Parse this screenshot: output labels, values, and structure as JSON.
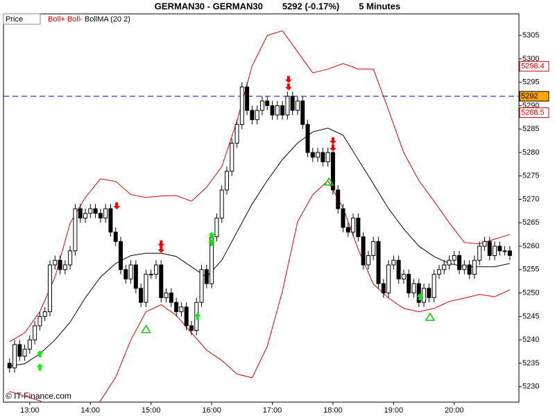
{
  "chart_data": {
    "type": "candlestick",
    "title": "GERMAN30 - GERMAN30",
    "subtitle": "5292 (-0.17%)",
    "interval": "5 Minutes",
    "credit": "© IT-Finance.com",
    "xlim": [
      754,
      1264
    ],
    "ylim": [
      5226.7,
      5309.6
    ],
    "xticks": [
      {
        "value": 780,
        "label": "13:00"
      },
      {
        "value": 840,
        "label": "14:00"
      },
      {
        "value": 900,
        "label": "15:00"
      },
      {
        "value": 960,
        "label": "16:00"
      },
      {
        "value": 1020,
        "label": "17:00"
      },
      {
        "value": 1080,
        "label": "18:00"
      },
      {
        "value": 1140,
        "label": "19:00"
      },
      {
        "value": 1200,
        "label": "20:00"
      }
    ],
    "yticks": [
      5230,
      5235,
      5240,
      5245,
      5250,
      5255,
      5260,
      5265,
      5270,
      5275,
      5280,
      5285,
      5290,
      5295,
      5300,
      5305
    ],
    "price": {
      "name": "Price",
      "up_color": "#ffffff",
      "down_color": "#000000",
      "x": [
        760,
        765,
        770,
        775,
        780,
        785,
        790,
        795,
        800,
        805,
        810,
        815,
        820,
        825,
        830,
        835,
        840,
        845,
        850,
        855,
        860,
        865,
        870,
        875,
        880,
        885,
        890,
        895,
        900,
        905,
        910,
        915,
        920,
        925,
        930,
        935,
        940,
        945,
        950,
        955,
        960,
        965,
        970,
        975,
        980,
        985,
        990,
        995,
        1000,
        1005,
        1010,
        1015,
        1020,
        1025,
        1030,
        1035,
        1040,
        1045,
        1050,
        1055,
        1060,
        1065,
        1070,
        1075,
        1080,
        1085,
        1090,
        1095,
        1100,
        1105,
        1110,
        1115,
        1120,
        1125,
        1130,
        1135,
        1140,
        1145,
        1150,
        1155,
        1160,
        1165,
        1170,
        1175,
        1180,
        1185,
        1190,
        1195,
        1200,
        1205,
        1210,
        1215,
        1220,
        1225,
        1230,
        1235,
        1240,
        1245,
        1250,
        1255
      ],
      "open": [
        5235,
        5234,
        5239,
        5236.5,
        5238,
        5240,
        5243,
        5245,
        5246,
        5256,
        5257,
        5255,
        5256,
        5259,
        5268,
        5266,
        5267,
        5268,
        5267,
        5266,
        5268,
        5263,
        5261,
        5255,
        5253,
        5256,
        5251,
        5248,
        5254,
        5254,
        5256,
        5249,
        5250,
        5248,
        5246,
        5247,
        5243,
        5242,
        5248,
        5255,
        5252,
        5262,
        5266,
        5272,
        5276,
        5282,
        5286,
        5294,
        5289,
        5287,
        5289,
        5291,
        5290,
        5288,
        5290,
        5288,
        5292,
        5289,
        5291,
        5286,
        5280,
        5279,
        5280,
        5278,
        5280,
        5272,
        5268,
        5264,
        5263,
        5266,
        5262,
        5256,
        5258,
        5261,
        5252,
        5250,
        5256,
        5257,
        5253,
        5254,
        5250,
        5252,
        5248,
        5251,
        5249,
        5254,
        5255,
        5256,
        5257,
        5258,
        5255,
        5256,
        5254,
        5257,
        5260,
        5261,
        5258,
        5260,
        5259,
        5259
      ],
      "high": [
        5236,
        5240,
        5240,
        5239,
        5241,
        5244,
        5246,
        5247,
        5257,
        5258,
        5258,
        5257,
        5260,
        5269,
        5269,
        5268,
        5269,
        5269,
        5268,
        5269,
        5269,
        5264,
        5262,
        5256,
        5257,
        5257,
        5252,
        5255,
        5255,
        5257,
        5257,
        5251,
        5251,
        5249,
        5248,
        5248,
        5244,
        5249,
        5256,
        5256,
        5263,
        5267,
        5273,
        5277,
        5283,
        5287,
        5295,
        5295,
        5290,
        5290,
        5292,
        5292,
        5291,
        5291,
        5291,
        5293,
        5293,
        5292,
        5292,
        5287,
        5281,
        5281,
        5281,
        5281,
        5281,
        5273,
        5269,
        5265,
        5267,
        5267,
        5263,
        5259,
        5262,
        5262,
        5253,
        5257,
        5258,
        5258,
        5255,
        5255,
        5253,
        5253,
        5252,
        5252,
        5255,
        5256,
        5257,
        5258,
        5259,
        5259,
        5257,
        5257,
        5258,
        5261,
        5262,
        5262,
        5261,
        5261,
        5260,
        5260
      ],
      "low": [
        5233,
        5233,
        5235.5,
        5235.5,
        5237,
        5239,
        5242,
        5244,
        5245,
        5255,
        5254,
        5254,
        5255,
        5258,
        5265,
        5265,
        5266,
        5266,
        5265,
        5265,
        5262,
        5260,
        5254,
        5252,
        5252,
        5250,
        5247,
        5247,
        5253,
        5253,
        5248,
        5248,
        5247,
        5245,
        5245,
        5242,
        5241,
        5241,
        5247,
        5251,
        5251,
        5261,
        5265,
        5271,
        5275,
        5281,
        5285,
        5288,
        5286,
        5286,
        5288,
        5289,
        5287,
        5287,
        5287,
        5287,
        5288,
        5288,
        5285,
        5279,
        5278,
        5278,
        5277,
        5277,
        5271,
        5267,
        5263,
        5262,
        5262,
        5261,
        5255,
        5255,
        5257,
        5251,
        5249,
        5249,
        5255,
        5252,
        5252,
        5249,
        5249,
        5247,
        5247,
        5248,
        5248,
        5253,
        5254,
        5255,
        5256,
        5254,
        5254,
        5253,
        5253,
        5256,
        5259,
        5257,
        5257,
        5258,
        5258,
        5257
      ],
      "close": [
        5234,
        5239,
        5236.5,
        5238,
        5240,
        5243,
        5245,
        5246,
        5256,
        5257,
        5255,
        5256,
        5259,
        5268,
        5266,
        5267,
        5268,
        5267,
        5266,
        5268,
        5263,
        5261,
        5255,
        5253,
        5256,
        5251,
        5248,
        5254,
        5254,
        5256,
        5249,
        5250,
        5248,
        5246,
        5247,
        5243,
        5242,
        5248,
        5255,
        5252,
        5262,
        5266,
        5272,
        5276,
        5282,
        5286,
        5294,
        5289,
        5287,
        5289,
        5291,
        5290,
        5288,
        5290,
        5288,
        5292,
        5289,
        5291,
        5286,
        5280,
        5279,
        5280,
        5278,
        5280,
        5272,
        5268,
        5264,
        5263,
        5266,
        5262,
        5256,
        5258,
        5261,
        5252,
        5250,
        5256,
        5257,
        5253,
        5254,
        5250,
        5252,
        5248,
        5251,
        5249,
        5254,
        5255,
        5256,
        5257,
        5258,
        5255,
        5256,
        5254,
        5257,
        5260,
        5261,
        5258,
        5260,
        5259,
        5259,
        5258
      ]
    },
    "band_x": [
      760,
      775,
      790,
      805,
      820,
      835,
      850,
      865,
      880,
      895,
      910,
      925,
      940,
      955,
      970,
      985,
      1000,
      1015,
      1030,
      1045,
      1060,
      1075,
      1090,
      1105,
      1120,
      1135,
      1150,
      1165,
      1180,
      1195,
      1210,
      1225,
      1240,
      1255
    ],
    "series": [
      {
        "name": "Boll+",
        "color": "#dd0000",
        "values": [
          5239.6,
          5241.5,
          5246,
          5253.4,
          5265,
          5270.4,
          5274.4,
          5273.8,
          5271,
          5270.4,
          5270.7,
          5270.8,
          5269.6,
          5272.6,
          5277,
          5286.7,
          5298.5,
          5305,
          5306,
          5301.5,
          5297,
          5297.8,
          5299,
          5297.8,
          5297.8,
          5289,
          5280,
          5274,
          5269.6,
          5265,
          5260.8,
          5260.5,
          5261.5,
          5262.5
        ]
      },
      {
        "name": "Boll-",
        "color": "#dd0000",
        "values": [
          5229,
          5228,
          5227,
          5225,
          5223,
          5224,
          5227,
          5232,
          5240,
          5246,
          5247.5,
          5245.2,
          5241.5,
          5237.8,
          5235.6,
          5232.7,
          5231.9,
          5238.6,
          5250.4,
          5265.2,
          5271,
          5274,
          5268.2,
          5259.3,
          5251.9,
          5248.9,
          5246.7,
          5246,
          5246.7,
          5248.2,
          5248.9,
          5249.7,
          5249.2,
          5250.7
        ]
      },
      {
        "name": "BollMA (20 2)",
        "color": "#000000",
        "values": [
          5234.4,
          5234.9,
          5237,
          5240,
          5243.8,
          5249,
          5253.4,
          5256.3,
          5258,
          5258.5,
          5258.5,
          5257.8,
          5255.6,
          5253.4,
          5257,
          5263,
          5269,
          5274,
          5278.5,
          5282,
          5284.4,
          5285.2,
          5283.7,
          5278.5,
          5273.3,
          5268,
          5263.7,
          5260,
          5257.8,
          5256.3,
          5255.6,
          5255.6,
          5255.6,
          5256.3
        ]
      }
    ],
    "markers": [
      {
        "shape": "arrow-up",
        "color": "#00ee00",
        "x": [
          790,
          790,
          946,
          960,
          960,
          1166
        ],
        "y": [
          5234.2,
          5237,
          5245,
          5260.8,
          5262.3,
          5249.2
        ]
      },
      {
        "shape": "arrow-down",
        "color": "#ee0000",
        "x": [
          866,
          910,
          910,
          1036,
          1036,
          1080,
          1080
        ],
        "y": [
          5268.6,
          5260.5,
          5259.3,
          5295.6,
          5294,
          5282.5,
          5281
        ]
      },
      {
        "shape": "triangle",
        "color": "#00cc00",
        "x": [
          895,
          1076,
          1176
        ],
        "y": [
          5242.3,
          5273.8,
          5244.9
        ]
      }
    ],
    "hline": {
      "value": 5292,
      "color": "#0000cc"
    },
    "price_labels": [
      {
        "value": 5298.4,
        "color": "#dd0000",
        "fill": "#ffffff"
      },
      {
        "value": 5292,
        "color": "#000000",
        "fill": "#ffa500"
      },
      {
        "value": 5288.5,
        "color": "#dd0000",
        "fill": "#ffffff"
      }
    ]
  }
}
